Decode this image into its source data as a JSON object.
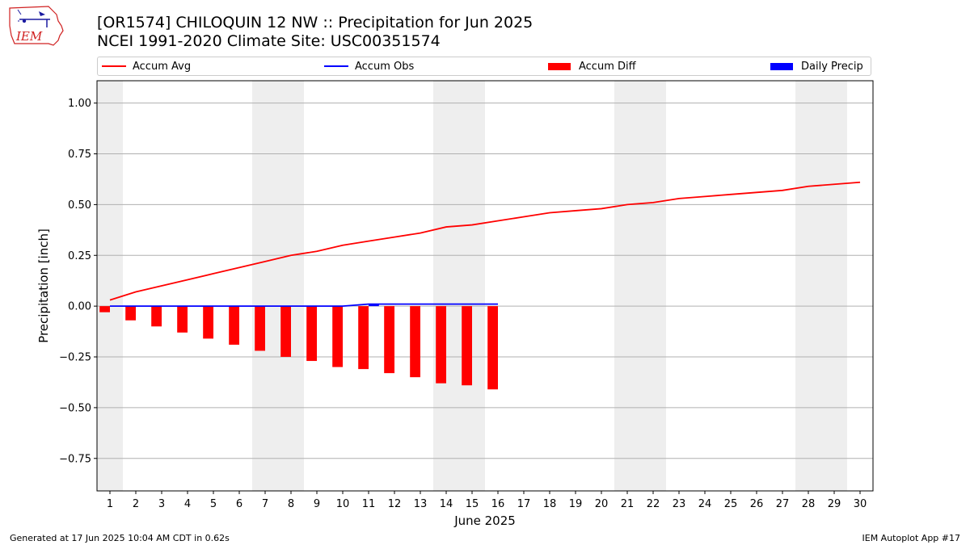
{
  "logo": {
    "text": "IEM",
    "icon": "iem-iowa-logo-icon"
  },
  "title": {
    "line1": "[OR1574] CHILOQUIN 12 NW :: Precipitation for Jun 2025",
    "line2": "NCEI 1991-2020 Climate Site: USC00351574"
  },
  "legend": {
    "placement": "top, above plot",
    "items": [
      {
        "label": "Accum Avg",
        "kind": "line",
        "color": "#ff0000"
      },
      {
        "label": "Accum Obs",
        "kind": "line",
        "color": "#0000ff"
      },
      {
        "label": "Accum Diff",
        "kind": "bar",
        "color": "#ff0000"
      },
      {
        "label": "Daily Precip",
        "kind": "bar",
        "color": "#0000ff"
      }
    ]
  },
  "footer": {
    "left": "Generated at 17 Jun 2025 10:04 AM CDT in 0.62s",
    "right": "IEM Autoplot App #17"
  },
  "chart_data": {
    "type": "bar",
    "title": "[OR1574] CHILOQUIN 12 NW :: Precipitation for Jun 2025",
    "subtitle": "NCEI 1991-2020 Climate Site: USC00351574",
    "xlabel": "June 2025",
    "ylabel": "Precipitation [inch]",
    "xlim": [
      0.5,
      30.5
    ],
    "ylim": [
      -0.91,
      1.11
    ],
    "x_ticks": [
      1,
      2,
      3,
      4,
      5,
      6,
      7,
      8,
      9,
      10,
      11,
      12,
      13,
      14,
      15,
      16,
      17,
      18,
      19,
      20,
      21,
      22,
      23,
      24,
      25,
      26,
      27,
      28,
      29,
      30
    ],
    "y_ticks": [
      -0.75,
      -0.5,
      -0.25,
      0.0,
      0.25,
      0.5,
      0.75,
      1.0
    ],
    "y_tick_labels": [
      "−0.75",
      "−0.50",
      "−0.25",
      "0.00",
      "0.25",
      "0.50",
      "0.75",
      "1.00"
    ],
    "grid": "horizontal",
    "weekend_shading": [
      [
        0.5,
        1.5
      ],
      [
        6.5,
        8.5
      ],
      [
        13.5,
        15.5
      ],
      [
        20.5,
        22.5
      ],
      [
        27.5,
        29.5
      ]
    ],
    "shading_color": "#eeeeee",
    "series": [
      {
        "name": "Accum Avg",
        "kind": "line",
        "color": "#ff0000",
        "x": [
          1,
          2,
          3,
          4,
          5,
          6,
          7,
          8,
          9,
          10,
          11,
          12,
          13,
          14,
          15,
          16,
          17,
          18,
          19,
          20,
          21,
          22,
          23,
          24,
          25,
          26,
          27,
          28,
          29,
          30
        ],
        "values": [
          0.03,
          0.07,
          0.1,
          0.13,
          0.16,
          0.19,
          0.22,
          0.25,
          0.27,
          0.3,
          0.32,
          0.34,
          0.36,
          0.39,
          0.4,
          0.42,
          0.44,
          0.46,
          0.47,
          0.48,
          0.5,
          0.51,
          0.53,
          0.54,
          0.55,
          0.56,
          0.57,
          0.59,
          0.6,
          0.61
        ]
      },
      {
        "name": "Accum Obs",
        "kind": "line",
        "color": "#0000ff",
        "x": [
          1,
          2,
          3,
          4,
          5,
          6,
          7,
          8,
          9,
          10,
          11,
          12,
          13,
          14,
          15,
          16
        ],
        "values": [
          0.0,
          0.0,
          0.0,
          0.0,
          0.0,
          0.0,
          0.0,
          0.0,
          0.0,
          0.0,
          0.01,
          0.01,
          0.01,
          0.01,
          0.01,
          0.01
        ]
      },
      {
        "name": "Accum Diff",
        "kind": "bar",
        "color": "#ff0000",
        "offset": -0.2,
        "x": [
          1,
          2,
          3,
          4,
          5,
          6,
          7,
          8,
          9,
          10,
          11,
          12,
          13,
          14,
          15,
          16
        ],
        "values": [
          -0.03,
          -0.07,
          -0.1,
          -0.13,
          -0.16,
          -0.19,
          -0.22,
          -0.25,
          -0.27,
          -0.3,
          -0.31,
          -0.33,
          -0.35,
          -0.38,
          -0.39,
          -0.41
        ]
      },
      {
        "name": "Daily Precip",
        "kind": "bar",
        "color": "#0000ff",
        "offset": 0.2,
        "x": [
          11
        ],
        "values": [
          0.01
        ]
      }
    ]
  }
}
